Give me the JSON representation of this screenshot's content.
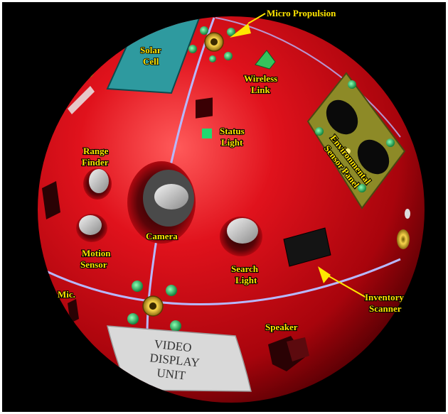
{
  "colors": {
    "sphere": "#d8121a",
    "label": "#ffe600",
    "arrow": "#ffe600",
    "seam": "#b7b8ff",
    "solar": "#2e9a9f",
    "panel": "#8d8a27",
    "led": "#2bd06c"
  },
  "labels": {
    "micro_propulsion": "Micro Propulsion",
    "solar_cell_1": "Solar",
    "solar_cell_2": "Cell",
    "wireless_link_1": "Wireless",
    "wireless_link_2": "Link",
    "status_light_1": "Status",
    "status_light_2": "Light",
    "env_sensor_1": "Environmental",
    "env_sensor_2": "Sensor Panel",
    "range_finder_1": "Range",
    "range_finder_2": "Finder",
    "camera": "Camera",
    "motion_sensor_1": "Motion",
    "motion_sensor_2": "Sensor",
    "search_light_1": "Search",
    "search_light_2": "Light",
    "inventory_scanner_1": "Inventory",
    "inventory_scanner_2": "Scanner",
    "mic": "Mic.",
    "speaker": "Speaker",
    "video_1": "VIDEO",
    "video_2": "DISPLAY",
    "video_3": "UNIT"
  }
}
